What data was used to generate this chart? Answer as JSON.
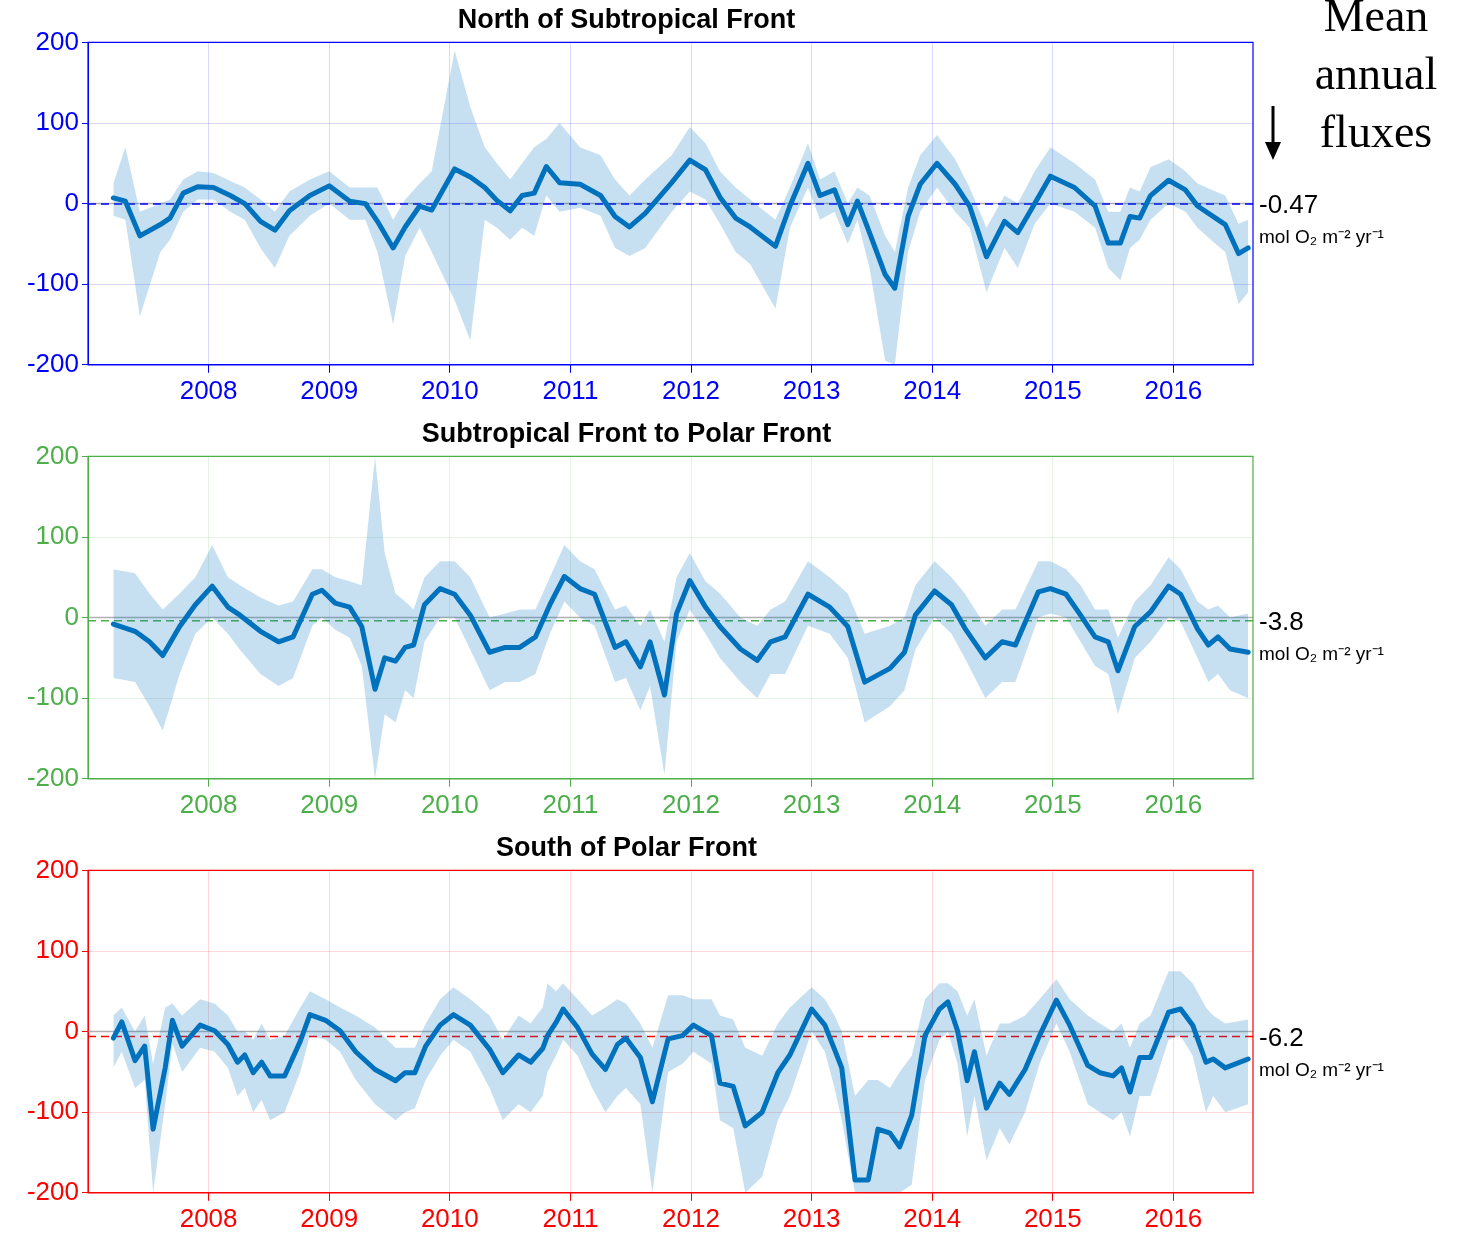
{
  "chart_data": [
    {
      "type": "line",
      "title": "North of Subtropical Front",
      "xlim": [
        2007,
        2016.66
      ],
      "xticks": [
        2008,
        2009,
        2010,
        2011,
        2012,
        2013,
        2014,
        2015,
        2016
      ],
      "ylim": [
        -200,
        200
      ],
      "yticks": [
        -200,
        -100,
        0,
        100,
        200
      ],
      "grid": true,
      "annotations": [
        "Mean annual fluxes"
      ],
      "ref_lines": [
        {
          "axis": "y",
          "value": 0,
          "color": "#b0b0b0"
        },
        {
          "axis": "y",
          "value": -0.47,
          "label": "-0.47 mol O₂ m⁻² yr⁻¹",
          "color": "#0000ff",
          "line_style": "dashed"
        }
      ],
      "series": [
        {
          "color": "#0072bd",
          "x": [
            2007.21,
            2007.31,
            2007.43,
            2007.6,
            2007.68,
            2007.79,
            2007.91,
            2008.04,
            2008.18,
            2008.3,
            2008.43,
            2008.55,
            2008.67,
            2008.84,
            2009.0,
            2009.17,
            2009.3,
            2009.4,
            2009.53,
            2009.63,
            2009.75,
            2009.85,
            2010.04,
            2010.17,
            2010.29,
            2010.39,
            2010.5,
            2010.6,
            2010.7,
            2010.8,
            2010.91,
            2011.08,
            2011.25,
            2011.37,
            2011.49,
            2011.62,
            2011.84,
            2011.99,
            2012.12,
            2012.24,
            2012.37,
            2012.49,
            2012.7,
            2012.82,
            2012.97,
            2013.07,
            2013.19,
            2013.3,
            2013.38,
            2013.48,
            2013.61,
            2013.69,
            2013.8,
            2013.9,
            2014.04,
            2014.19,
            2014.31,
            2014.45,
            2014.6,
            2014.71,
            2014.85,
            2014.98,
            2015.18,
            2015.35,
            2015.46,
            2015.56,
            2015.64,
            2015.72,
            2015.81,
            2015.96,
            2016.1,
            2016.2,
            2016.35,
            2016.43,
            2016.54,
            2016.62
          ],
          "values": [
            7,
            3,
            -40,
            -26,
            -18,
            13,
            21,
            20,
            10,
            0,
            -22,
            -33,
            -9,
            10,
            22,
            3,
            0,
            -22,
            -55,
            -29,
            -3,
            -8,
            43,
            33,
            20,
            4,
            -9,
            10,
            13,
            46,
            26,
            24,
            10,
            -16,
            -29,
            -12,
            26,
            54,
            42,
            8,
            -18,
            -29,
            -53,
            -3,
            50,
            10,
            17,
            -26,
            3,
            -36,
            -88,
            -105,
            -16,
            24,
            50,
            24,
            -3,
            -66,
            -22,
            -36,
            0,
            34,
            20,
            -3,
            -49,
            -49,
            -16,
            -18,
            10,
            29,
            17,
            -3,
            -18,
            -26,
            -62,
            -55
          ],
          "upper": [
            25,
            70,
            -10,
            0,
            5,
            30,
            40,
            38,
            28,
            20,
            5,
            -10,
            15,
            30,
            40,
            20,
            20,
            20,
            -20,
            5,
            25,
            40,
            190,
            120,
            70,
            50,
            30,
            50,
            70,
            80,
            100,
            70,
            60,
            30,
            10,
            30,
            60,
            95,
            75,
            40,
            20,
            5,
            -20,
            20,
            75,
            30,
            40,
            0,
            20,
            10,
            -40,
            -60,
            20,
            60,
            85,
            55,
            20,
            -30,
            10,
            0,
            40,
            70,
            50,
            30,
            -10,
            -10,
            20,
            15,
            45,
            55,
            40,
            25,
            15,
            10,
            -25,
            -20
          ],
          "lower": [
            -15,
            -20,
            -140,
            -60,
            -45,
            -10,
            5,
            5,
            -10,
            -20,
            -55,
            -80,
            -40,
            -15,
            0,
            -20,
            -20,
            -60,
            -150,
            -65,
            -30,
            -60,
            -120,
            -170,
            -20,
            -30,
            -45,
            -30,
            -40,
            10,
            -10,
            -5,
            -15,
            -55,
            -65,
            -55,
            -10,
            15,
            5,
            -25,
            -60,
            -75,
            -130,
            -30,
            20,
            -20,
            -10,
            -50,
            -20,
            -80,
            -195,
            -200,
            -60,
            -10,
            20,
            -10,
            -30,
            -110,
            -55,
            -80,
            -25,
            0,
            -10,
            -30,
            -80,
            -95,
            -55,
            -45,
            -20,
            0,
            -10,
            -30,
            -50,
            -60,
            -125,
            -110
          ]
        }
      ]
    },
    {
      "type": "line",
      "title": "Subtropical Front to Polar Front",
      "xlim": [
        2007,
        2016.66
      ],
      "xticks": [
        2008,
        2009,
        2010,
        2011,
        2012,
        2013,
        2014,
        2015,
        2016
      ],
      "ylim": [
        -200,
        200
      ],
      "yticks": [
        -200,
        -100,
        0,
        100,
        200
      ],
      "grid": true,
      "ref_lines": [
        {
          "axis": "y",
          "value": 0,
          "color": "#b0b0b0"
        },
        {
          "axis": "y",
          "value": -3.8,
          "label": "-3.8 mol O₂ m⁻² yr⁻¹",
          "color": "#4daf4a",
          "line_style": "dashed"
        }
      ],
      "series": [
        {
          "color": "#0072bd",
          "x": [
            2007.21,
            2007.39,
            2007.51,
            2007.62,
            2007.76,
            2007.89,
            2008.03,
            2008.16,
            2008.26,
            2008.43,
            2008.58,
            2008.7,
            2008.86,
            2008.94,
            2009.05,
            2009.17,
            2009.27,
            2009.38,
            2009.46,
            2009.55,
            2009.63,
            2009.7,
            2009.79,
            2009.92,
            2010.04,
            2010.17,
            2010.33,
            2010.46,
            2010.58,
            2010.71,
            2010.83,
            2010.95,
            2011.08,
            2011.2,
            2011.37,
            2011.46,
            2011.58,
            2011.66,
            2011.78,
            2011.88,
            2011.99,
            2012.12,
            2012.24,
            2012.41,
            2012.55,
            2012.66,
            2012.78,
            2012.97,
            2013.15,
            2013.3,
            2013.44,
            2013.65,
            2013.77,
            2013.86,
            2014.02,
            2014.16,
            2014.27,
            2014.44,
            2014.58,
            2014.69,
            2014.88,
            2014.98,
            2015.11,
            2015.23,
            2015.35,
            2015.46,
            2015.54,
            2015.68,
            2015.81,
            2015.96,
            2016.06,
            2016.2,
            2016.29,
            2016.37,
            2016.47,
            2016.62
          ],
          "values": [
            -8,
            -17,
            -30,
            -47,
            -11,
            16,
            39,
            13,
            3,
            -17,
            -30,
            -24,
            29,
            34,
            18,
            13,
            -11,
            -89,
            -50,
            -54,
            -37,
            -34,
            16,
            36,
            29,
            3,
            -43,
            -37,
            -37,
            -24,
            16,
            51,
            36,
            29,
            -37,
            -30,
            -61,
            -30,
            -96,
            5,
            46,
            13,
            -11,
            -39,
            -53,
            -30,
            -24,
            29,
            13,
            -11,
            -80,
            -63,
            -43,
            3,
            33,
            16,
            -13,
            -50,
            -30,
            -34,
            32,
            36,
            29,
            3,
            -24,
            -30,
            -66,
            -11,
            7,
            39,
            29,
            -14,
            -34,
            -24,
            -39,
            -43
          ],
          "upper": [
            60,
            55,
            30,
            10,
            30,
            50,
            90,
            50,
            40,
            25,
            15,
            20,
            60,
            60,
            50,
            45,
            40,
            200,
            80,
            30,
            20,
            10,
            50,
            70,
            70,
            50,
            0,
            5,
            10,
            10,
            50,
            90,
            70,
            60,
            10,
            15,
            -10,
            10,
            -30,
            50,
            80,
            45,
            30,
            0,
            -10,
            10,
            20,
            70,
            50,
            30,
            -20,
            -10,
            0,
            40,
            70,
            50,
            30,
            -10,
            10,
            10,
            70,
            70,
            60,
            40,
            10,
            10,
            -25,
            20,
            40,
            75,
            60,
            20,
            10,
            15,
            0,
            5
          ],
          "lower": [
            -75,
            -80,
            -110,
            -140,
            -70,
            -20,
            0,
            -20,
            -40,
            -70,
            -85,
            -75,
            -10,
            0,
            -15,
            -25,
            -60,
            -200,
            -120,
            -130,
            -90,
            -100,
            -30,
            0,
            0,
            -40,
            -90,
            -80,
            -80,
            -70,
            -20,
            20,
            0,
            -10,
            -80,
            -75,
            -115,
            -85,
            -195,
            -30,
            10,
            -20,
            -50,
            -80,
            -100,
            -70,
            -70,
            -10,
            -20,
            -50,
            -130,
            -110,
            -90,
            -40,
            0,
            -20,
            -50,
            -100,
            -80,
            -80,
            0,
            5,
            0,
            -30,
            -60,
            -70,
            -120,
            -50,
            -30,
            0,
            -5,
            -50,
            -80,
            -70,
            -90,
            -100
          ]
        }
      ]
    },
    {
      "type": "line",
      "title": "South of Polar Front",
      "xlim": [
        2007,
        2016.66
      ],
      "xticks": [
        2008,
        2009,
        2010,
        2011,
        2012,
        2013,
        2014,
        2015,
        2016
      ],
      "ylim": [
        -200,
        200
      ],
      "yticks": [
        -200,
        -100,
        0,
        100,
        200
      ],
      "grid": true,
      "ref_lines": [
        {
          "axis": "y",
          "value": 0,
          "color": "#b0b0b0"
        },
        {
          "axis": "y",
          "value": -6.2,
          "label": "-6.2 mol O₂ m⁻² yr⁻¹",
          "color": "#ff0000",
          "line_style": "dashed"
        }
      ],
      "series": [
        {
          "color": "#0072bd",
          "x": [
            2007.21,
            2007.28,
            2007.39,
            2007.47,
            2007.54,
            2007.64,
            2007.7,
            2007.78,
            2007.93,
            2008.05,
            2008.16,
            2008.24,
            2008.3,
            2008.37,
            2008.44,
            2008.51,
            2008.63,
            2008.76,
            2008.84,
            2008.97,
            2009.09,
            2009.22,
            2009.38,
            2009.55,
            2009.63,
            2009.71,
            2009.8,
            2009.92,
            2010.03,
            2010.17,
            2010.33,
            2010.44,
            2010.57,
            2010.67,
            2010.77,
            2010.81,
            2010.88,
            2010.94,
            2011.06,
            2011.18,
            2011.29,
            2011.39,
            2011.46,
            2011.58,
            2011.68,
            2011.81,
            2011.93,
            2012.02,
            2012.17,
            2012.24,
            2012.35,
            2012.45,
            2012.59,
            2012.72,
            2012.82,
            2013.0,
            2013.11,
            2013.19,
            2013.25,
            2013.36,
            2013.47,
            2013.55,
            2013.65,
            2013.73,
            2013.83,
            2013.94,
            2014.06,
            2014.13,
            2014.21,
            2014.29,
            2014.35,
            2014.45,
            2014.56,
            2014.64,
            2014.77,
            2014.89,
            2015.03,
            2015.14,
            2015.29,
            2015.39,
            2015.5,
            2015.57,
            2015.64,
            2015.72,
            2015.81,
            2015.96,
            2016.06,
            2016.16,
            2016.27,
            2016.33,
            2016.43,
            2016.62
          ],
          "values": [
            -8,
            12,
            -36,
            -18,
            -121,
            -45,
            14,
            -18,
            8,
            1,
            -16,
            -38,
            -29,
            -51,
            -38,
            -55,
            -55,
            -12,
            21,
            14,
            1,
            -25,
            -47,
            -61,
            -51,
            -51,
            -18,
            8,
            21,
            8,
            -22,
            -51,
            -29,
            -38,
            -21,
            -5,
            11,
            28,
            5,
            -28,
            -47,
            -16,
            -8,
            -32,
            -87,
            -9,
            -5,
            8,
            -5,
            -64,
            -68,
            -117,
            -100,
            -51,
            -29,
            28,
            8,
            -22,
            -45,
            -184,
            -184,
            -121,
            -126,
            -143,
            -104,
            -5,
            28,
            37,
            1,
            -61,
            -25,
            -95,
            -64,
            -78,
            -47,
            -5,
            39,
            8,
            -42,
            -51,
            -55,
            -45,
            -75,
            -32,
            -32,
            24,
            28,
            8,
            -38,
            -34,
            -45,
            -34
          ],
          "upper": [
            20,
            30,
            0,
            20,
            -40,
            30,
            35,
            20,
            40,
            35,
            20,
            0,
            0,
            -10,
            10,
            -10,
            -5,
            30,
            50,
            40,
            30,
            20,
            5,
            -20,
            -20,
            -20,
            10,
            40,
            55,
            40,
            20,
            -10,
            20,
            10,
            30,
            60,
            50,
            60,
            40,
            20,
            30,
            40,
            35,
            10,
            -20,
            45,
            45,
            40,
            40,
            20,
            15,
            -20,
            -30,
            10,
            30,
            55,
            40,
            20,
            0,
            -80,
            -60,
            -60,
            -70,
            -50,
            -30,
            40,
            60,
            60,
            50,
            20,
            40,
            -30,
            10,
            10,
            20,
            40,
            65,
            40,
            20,
            10,
            0,
            10,
            -20,
            10,
            20,
            75,
            75,
            60,
            30,
            20,
            10,
            15
          ],
          "lower": [
            -45,
            -25,
            -70,
            -60,
            -200,
            -90,
            -15,
            -50,
            -20,
            -25,
            -45,
            -80,
            -70,
            -100,
            -85,
            -110,
            -100,
            -50,
            -5,
            -10,
            -25,
            -60,
            -90,
            -110,
            -100,
            -95,
            -60,
            -30,
            -10,
            -25,
            -70,
            -110,
            -90,
            -100,
            -80,
            -50,
            -30,
            -10,
            -30,
            -70,
            -100,
            -80,
            -70,
            -90,
            -200,
            -50,
            -40,
            -25,
            -40,
            -110,
            -120,
            -200,
            -180,
            -110,
            -80,
            0,
            -25,
            -70,
            -110,
            -200,
            -200,
            -200,
            -200,
            -200,
            -190,
            -60,
            -10,
            0,
            -40,
            -130,
            -80,
            -160,
            -120,
            -140,
            -100,
            -40,
            10,
            -25,
            -90,
            -100,
            -110,
            -100,
            -130,
            -80,
            -80,
            -10,
            -5,
            -30,
            -100,
            -80,
            -100,
            -90
          ]
        }
      ]
    }
  ]
}
